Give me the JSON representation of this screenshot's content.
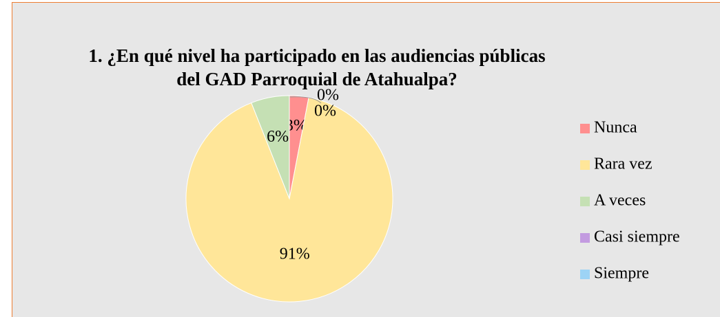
{
  "chart_data": {
    "type": "pie",
    "title": "1. ¿En qué nivel ha participado en las audiencias públicas del GAD Parroquial de Atahualpa?",
    "categories": [
      "Nunca",
      "Rara vez",
      "A veces",
      "Casi siempre",
      "Siempre"
    ],
    "values": [
      3,
      91,
      6,
      0,
      0
    ],
    "value_labels": [
      "3%",
      "91%",
      "6%",
      "0%",
      "0%"
    ],
    "colors": [
      "#ff8f8f",
      "#ffe699",
      "#c5e0b4",
      "#c39be0",
      "#9dd3f5"
    ],
    "legend": "right"
  }
}
